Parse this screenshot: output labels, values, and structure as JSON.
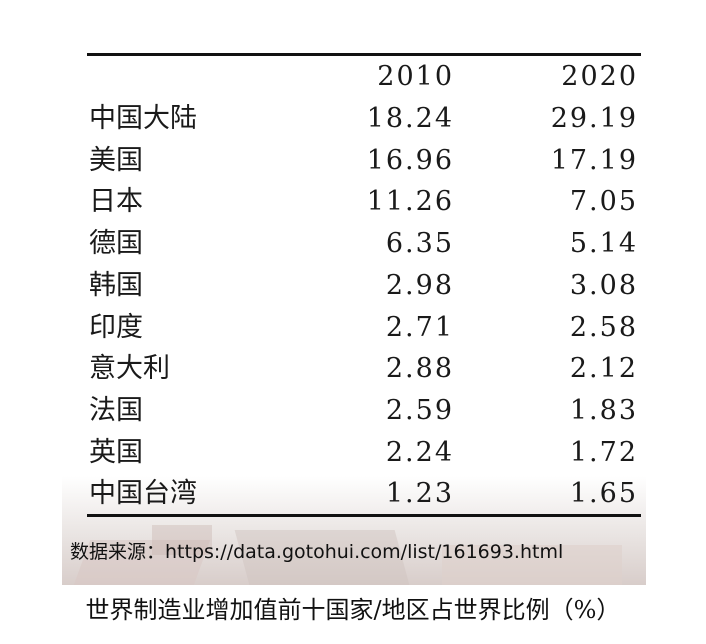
{
  "chart_data": {
    "type": "table",
    "columns": [
      "2010",
      "2020"
    ],
    "rows": [
      {
        "region": "中国大陆",
        "values": [
          "18.24",
          "29.19"
        ]
      },
      {
        "region": "美国",
        "values": [
          "16.96",
          "17.19"
        ]
      },
      {
        "region": "日本",
        "values": [
          "11.26",
          "7.05"
        ]
      },
      {
        "region": "德国",
        "values": [
          "6.35",
          "5.14"
        ]
      },
      {
        "region": "韩国",
        "values": [
          "2.98",
          "3.08"
        ]
      },
      {
        "region": "印度",
        "values": [
          "2.71",
          "2.58"
        ]
      },
      {
        "region": "意大利",
        "values": [
          "2.88",
          "2.12"
        ]
      },
      {
        "region": "法国",
        "values": [
          "2.59",
          "1.83"
        ]
      },
      {
        "region": "英国",
        "values": [
          "2.24",
          "1.72"
        ]
      },
      {
        "region": "中国台湾",
        "values": [
          "1.23",
          "1.65"
        ]
      }
    ],
    "source": "数据来源：https://data.gotohui.com/list/161693.html",
    "title": "世界制造业增加值前十国家/地区占世界比例（%）"
  }
}
